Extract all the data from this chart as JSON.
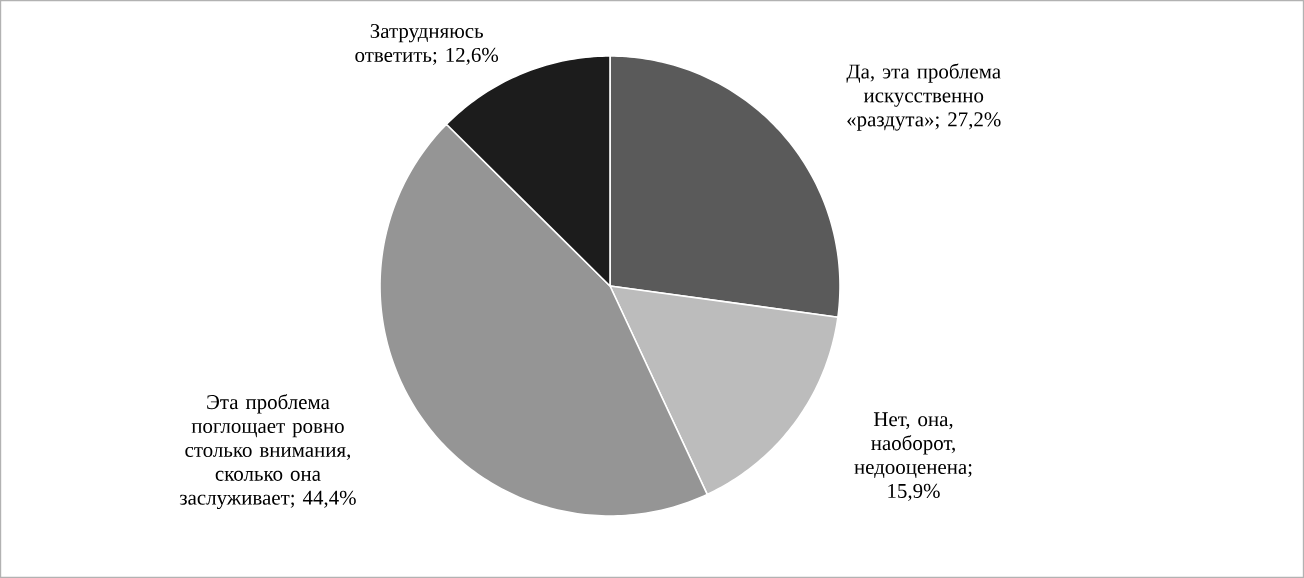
{
  "chart_data": {
    "type": "pie",
    "categories": [
      "Да, эта проблема искусственно «раздута»",
      "Нет, она, наоборот, недооценена",
      "Эта проблема поглощает ровно столько внимания, сколько она заслуживает",
      "Затрудняюсь ответить"
    ],
    "values": [
      27.2,
      15.9,
      44.4,
      12.6
    ],
    "colors": [
      "#5a5a5a",
      "#bcbcbc",
      "#959595",
      "#1c1c1c"
    ],
    "value_labels": [
      "; 27,2%",
      "; 15,9%",
      "; 44,4%",
      "; 12,6%"
    ]
  }
}
